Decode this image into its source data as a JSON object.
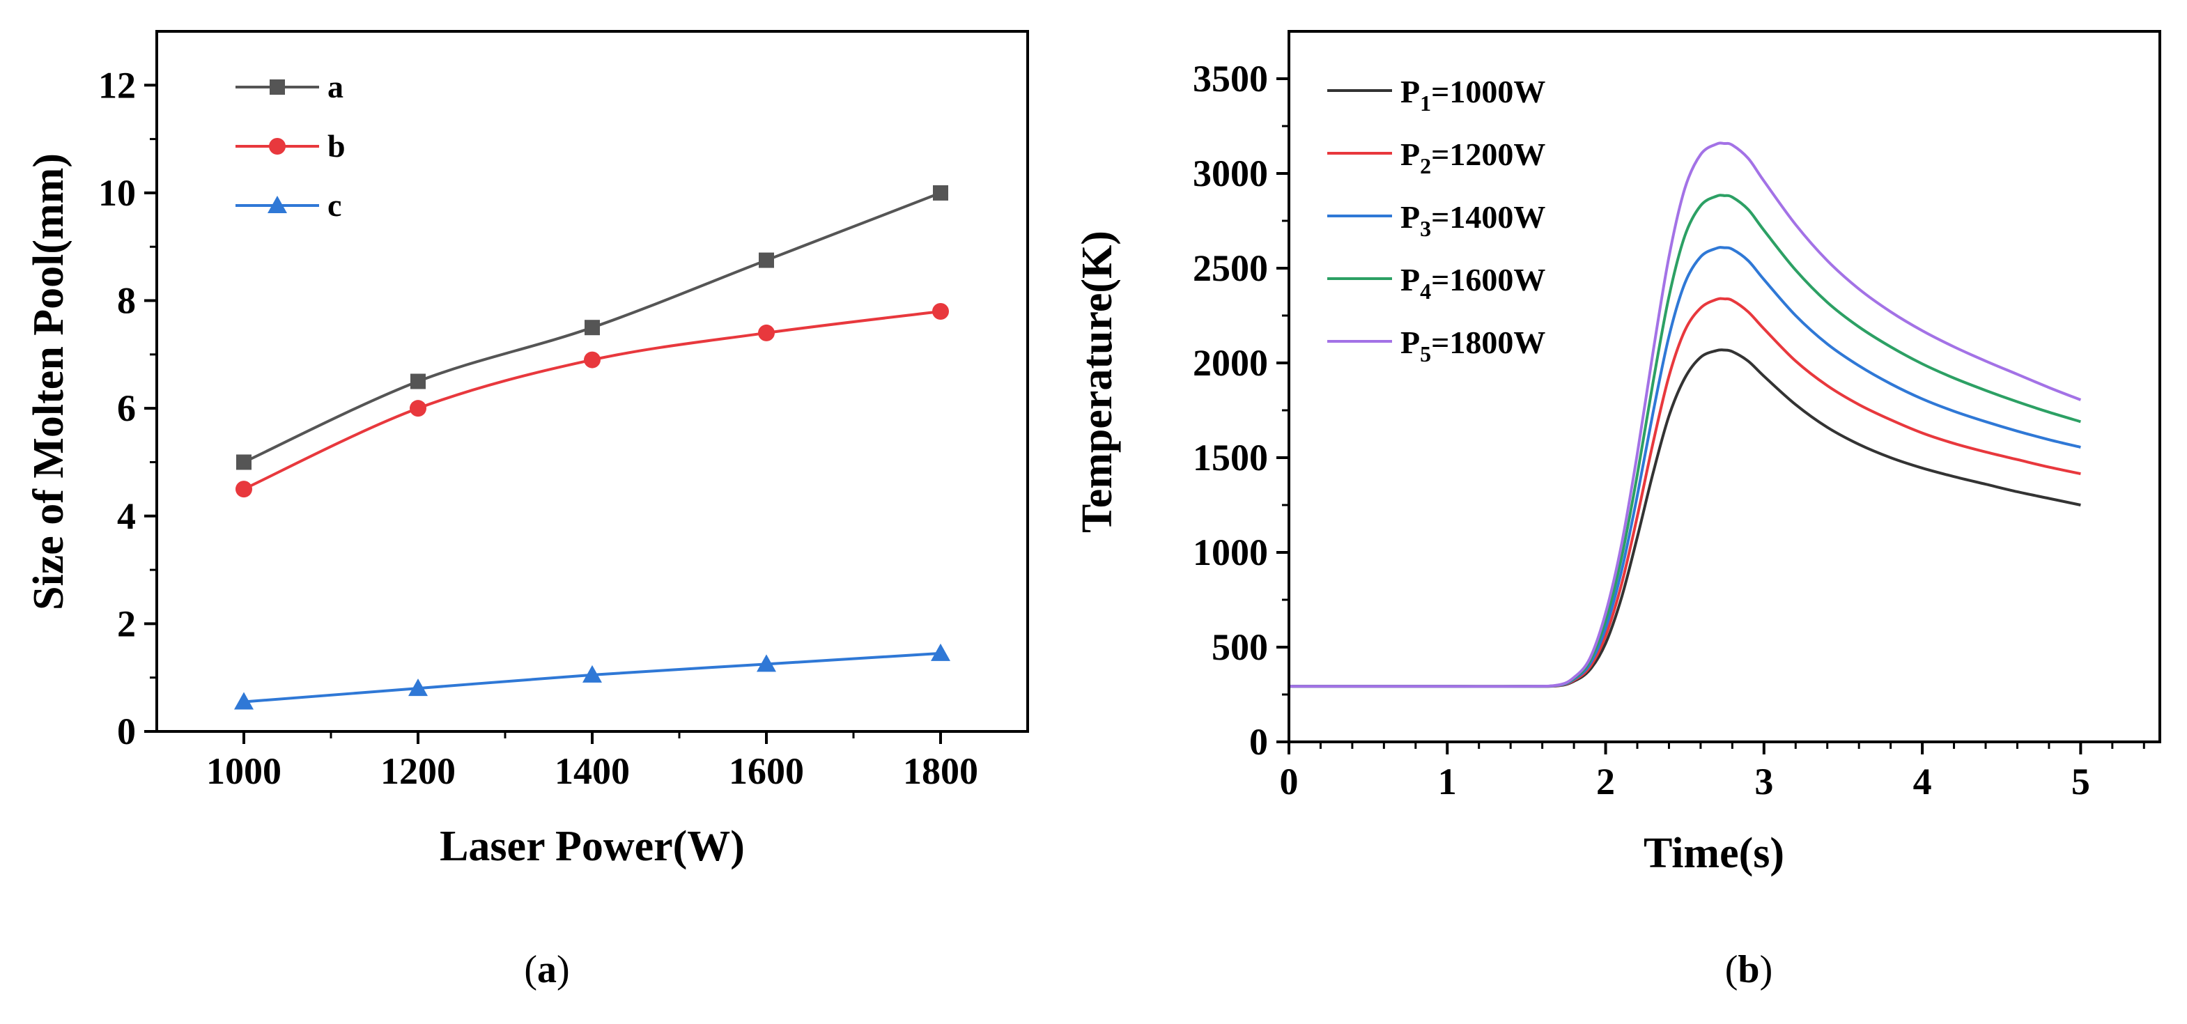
{
  "chart_data": [
    {
      "type": "line",
      "caption": "a",
      "xlabel": "Laser Power(W)",
      "ylabel": "Size of Molten Pool(mm)",
      "xlim": [
        900,
        1900
      ],
      "ylim": [
        0,
        13
      ],
      "xticks": [
        "1000",
        "1200",
        "1400",
        "1600",
        "1800"
      ],
      "yticks": [
        "0",
        "2",
        "4",
        "6",
        "8",
        "10",
        "12"
      ],
      "legend_position": "top-left",
      "x": [
        1000,
        1200,
        1400,
        1600,
        1800
      ],
      "series": [
        {
          "name": "a",
          "color": "#555555",
          "marker": "square",
          "values": [
            5.0,
            6.5,
            7.5,
            8.75,
            10.0
          ]
        },
        {
          "name": "b",
          "color": "#e8383d",
          "marker": "circle",
          "values": [
            4.5,
            6.0,
            6.9,
            7.4,
            7.8
          ]
        },
        {
          "name": "c",
          "color": "#2f78d6",
          "marker": "triangle",
          "values": [
            0.55,
            0.8,
            1.05,
            1.25,
            1.45
          ]
        }
      ]
    },
    {
      "type": "line",
      "caption": "b",
      "xlabel": "Time(s)",
      "ylabel": "Temperature(K)",
      "xlim": [
        0,
        5.5
      ],
      "ylim": [
        0,
        3750
      ],
      "xticks": [
        "0",
        "1",
        "2",
        "3",
        "4",
        "5"
      ],
      "yticks": [
        "0",
        "500",
        "1000",
        "1500",
        "2000",
        "2500",
        "3000",
        "3500"
      ],
      "legend_position": "top-left",
      "x": [
        0,
        0.5,
        1.0,
        1.5,
        1.7,
        1.8,
        1.9,
        2.0,
        2.1,
        2.2,
        2.3,
        2.4,
        2.5,
        2.6,
        2.7,
        2.75,
        2.8,
        2.9,
        3.0,
        3.2,
        3.4,
        3.6,
        3.8,
        4.0,
        4.2,
        4.4,
        4.6,
        4.8,
        5.0
      ],
      "series": [
        {
          "label": [
            "P",
            "1",
            "=1000W"
          ],
          "color": "#333333",
          "values": [
            293,
            293,
            293,
            293,
            296,
            320,
            380,
            520,
            760,
            1080,
            1420,
            1720,
            1920,
            2030,
            2065,
            2068,
            2060,
            2010,
            1930,
            1780,
            1660,
            1570,
            1500,
            1445,
            1400,
            1360,
            1320,
            1285,
            1250
          ]
        },
        {
          "label": [
            "P",
            "2",
            "=1200W"
          ],
          "color": "#e8383d",
          "values": [
            293,
            293,
            293,
            293,
            297,
            325,
            395,
            560,
            830,
            1190,
            1580,
            1930,
            2170,
            2290,
            2335,
            2338,
            2330,
            2270,
            2180,
            2010,
            1880,
            1780,
            1700,
            1630,
            1575,
            1530,
            1490,
            1450,
            1415
          ]
        },
        {
          "label": [
            "P",
            "3",
            "=1400W"
          ],
          "color": "#2f78d6",
          "values": [
            293,
            293,
            293,
            293,
            298,
            330,
            410,
            600,
            900,
            1300,
            1740,
            2140,
            2420,
            2560,
            2605,
            2608,
            2600,
            2540,
            2440,
            2250,
            2100,
            1985,
            1890,
            1810,
            1745,
            1690,
            1640,
            1595,
            1555
          ]
        },
        {
          "label": [
            "P",
            "4",
            "=1600W"
          ],
          "color": "#2ca064",
          "values": [
            293,
            293,
            293,
            293,
            299,
            335,
            425,
            640,
            970,
            1410,
            1900,
            2350,
            2670,
            2830,
            2880,
            2883,
            2875,
            2810,
            2700,
            2490,
            2320,
            2190,
            2085,
            1995,
            1920,
            1855,
            1795,
            1740,
            1690
          ]
        },
        {
          "label": [
            "P",
            "5",
            "=1800W"
          ],
          "color": "#a372e6",
          "values": [
            293,
            293,
            293,
            293,
            300,
            340,
            440,
            680,
            1040,
            1520,
            2060,
            2560,
            2920,
            3100,
            3155,
            3158,
            3150,
            3080,
            2960,
            2730,
            2540,
            2390,
            2270,
            2170,
            2085,
            2010,
            1940,
            1870,
            1805
          ]
        }
      ]
    }
  ]
}
